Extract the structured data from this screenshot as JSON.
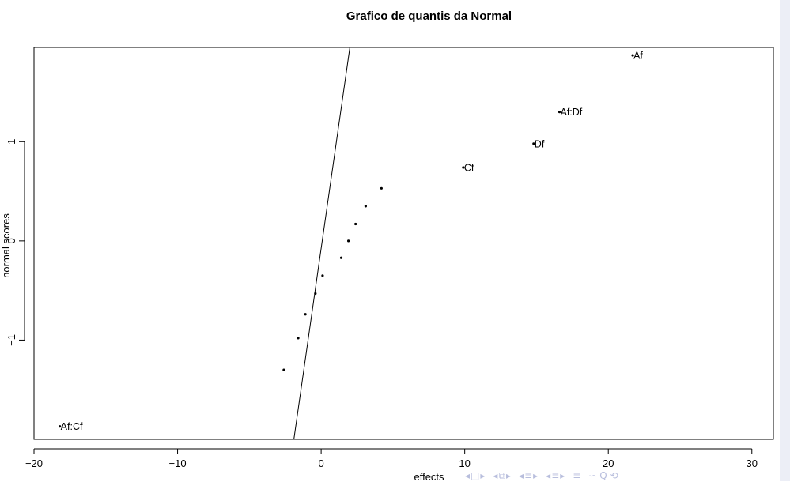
{
  "chart_data": {
    "type": "scatter",
    "title": "Grafico de quantis da Normal",
    "xlabel": "effects",
    "ylabel": "normal scores",
    "xlim": [
      -20,
      31.5
    ],
    "ylim": [
      -2.0,
      1.95
    ],
    "xticks": [
      -20,
      -10,
      0,
      10,
      20,
      30
    ],
    "yticks": [
      -1,
      0,
      1
    ],
    "xtick_labels": [
      "−20",
      "−10",
      "0",
      "10",
      "20",
      "30"
    ],
    "ytick_labels": [
      "−1",
      "0",
      "1"
    ],
    "points": [
      {
        "x": -18.2,
        "y": -1.87,
        "label": "Af:Cf"
      },
      {
        "x": -2.6,
        "y": -1.3,
        "label": ""
      },
      {
        "x": -1.6,
        "y": -0.98,
        "label": ""
      },
      {
        "x": -1.1,
        "y": -0.74,
        "label": ""
      },
      {
        "x": -0.4,
        "y": -0.53,
        "label": ""
      },
      {
        "x": 0.1,
        "y": -0.35,
        "label": ""
      },
      {
        "x": 1.4,
        "y": -0.17,
        "label": ""
      },
      {
        "x": 1.9,
        "y": 0.0,
        "label": ""
      },
      {
        "x": 2.4,
        "y": 0.17,
        "label": ""
      },
      {
        "x": 3.1,
        "y": 0.35,
        "label": ""
      },
      {
        "x": 4.2,
        "y": 0.53,
        "label": ""
      },
      {
        "x": 9.9,
        "y": 0.74,
        "label": "Cf"
      },
      {
        "x": 14.8,
        "y": 0.98,
        "label": "Df"
      },
      {
        "x": 16.6,
        "y": 1.3,
        "label": "Af:Df"
      },
      {
        "x": 21.7,
        "y": 1.87,
        "label": "Af"
      }
    ],
    "reference_line": {
      "x1": -1.9,
      "y1": -2.0,
      "x2": 2.0,
      "y2": 1.95
    },
    "grid": false,
    "legend": "none"
  },
  "beamer_nav": {
    "prev_icon": "triangle-left-icon",
    "next_icon": "triangle-right-icon",
    "frame_icon": "frame-icon",
    "subsection_icon": "subsection-icon",
    "section_icon": "section-icon",
    "align_icon": "align-icon",
    "search_icon": "search-icon",
    "frame_glyph": "□",
    "subsection_glyph": "⧉",
    "section_glyph": "≡",
    "align_glyph": "≡",
    "search_glyph": "∽ Q ⟲"
  }
}
